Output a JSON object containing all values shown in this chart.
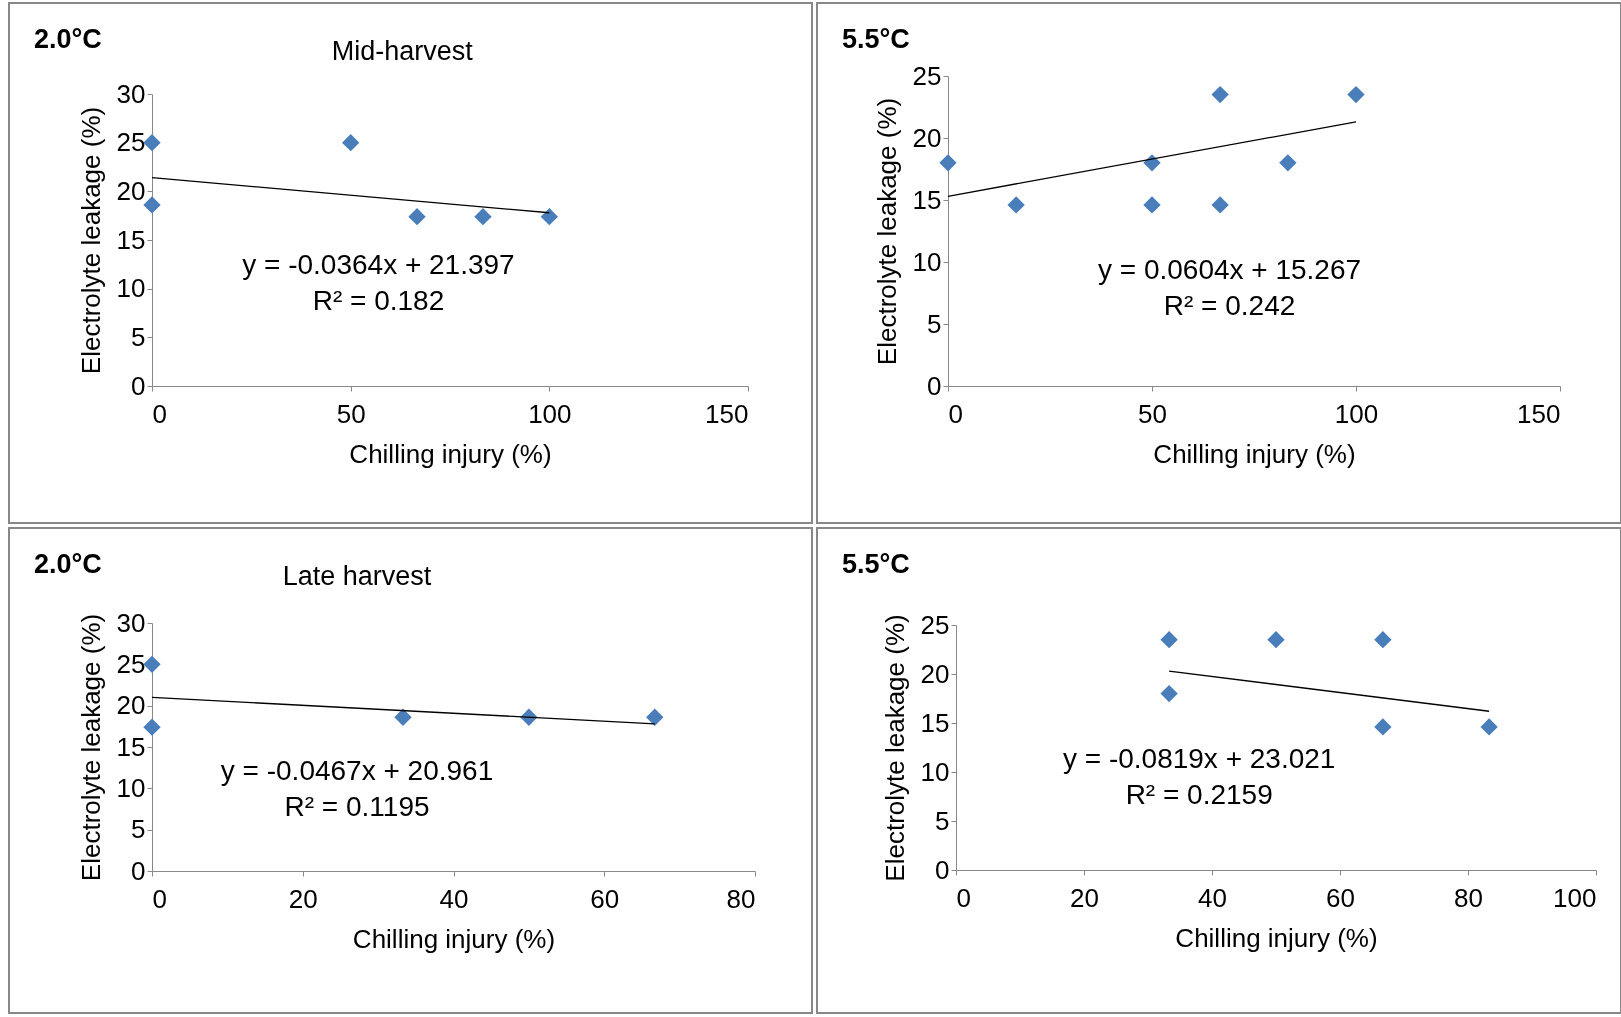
{
  "chart_data": [
    {
      "type": "scatter",
      "title": "2.0°C",
      "subtitle": "Mid-harvest",
      "xlabel": "Chilling injury (%)",
      "ylabel": "Electrolyte leakage (%)",
      "xlim": [
        0,
        150
      ],
      "xticks": [
        0,
        50,
        100,
        150
      ],
      "ylim": [
        0,
        30
      ],
      "yticks": [
        0,
        5,
        10,
        15,
        20,
        25,
        30
      ],
      "grid": false,
      "series": [
        {
          "marker": "diamond",
          "color": "#4a7ebb",
          "x": [
            0,
            0,
            50,
            66.7,
            83.3,
            100
          ],
          "values": [
            25,
            18.6,
            25,
            17.4,
            17.4,
            17.4
          ]
        },
        {
          "type": "line",
          "marker": "none",
          "color": "#000000",
          "x": [
            0,
            100
          ],
          "values": [
            21.4,
            17.8
          ]
        }
      ],
      "annotations": [
        "y = -0.0364x + 21.397",
        "R² = 0.182"
      ]
    },
    {
      "type": "scatter",
      "title": "5.5°C",
      "xlabel": "Chilling injury (%)",
      "ylabel": "Electrolyte leakage (%)",
      "xlim": [
        0,
        150
      ],
      "xticks": [
        0,
        50,
        100,
        150
      ],
      "ylim": [
        0,
        25
      ],
      "yticks": [
        0,
        5,
        10,
        15,
        20,
        25
      ],
      "grid": false,
      "series": [
        {
          "marker": "diamond",
          "color": "#4a7ebb",
          "x": [
            0,
            16.7,
            50,
            50,
            66.7,
            66.7,
            83.3,
            100
          ],
          "values": [
            18,
            14.6,
            18,
            14.6,
            23.5,
            14.6,
            18,
            23.5
          ]
        },
        {
          "type": "line",
          "marker": "none",
          "color": "#000000",
          "x": [
            0,
            100
          ],
          "values": [
            15.3,
            21.3
          ]
        }
      ],
      "annotations": [
        "y = 0.0604x + 15.267",
        "R² = 0.242"
      ]
    },
    {
      "type": "scatter",
      "title": "2.0°C",
      "subtitle": "Late harvest",
      "xlabel": "Chilling injury (%)",
      "ylabel": "Electrolyte leakage (%)",
      "xlim": [
        0,
        80
      ],
      "xticks": [
        0,
        20,
        40,
        60,
        80
      ],
      "ylim": [
        0,
        30
      ],
      "yticks": [
        0,
        5,
        10,
        15,
        20,
        25,
        30
      ],
      "grid": false,
      "series": [
        {
          "marker": "diamond",
          "color": "#4a7ebb",
          "x": [
            0,
            0,
            33.3,
            50,
            66.7
          ],
          "values": [
            25,
            17.4,
            18.6,
            18.6,
            18.6
          ]
        },
        {
          "type": "line",
          "marker": "none",
          "color": "#000000",
          "x": [
            0,
            66.7
          ],
          "values": [
            21.0,
            17.8
          ]
        }
      ],
      "annotations": [
        "y = -0.0467x + 20.961",
        "R² = 0.1195"
      ]
    },
    {
      "type": "scatter",
      "title": "5.5°C",
      "xlabel": "Chilling injury (%)",
      "ylabel": "Electrolyte leakage (%)",
      "xlim": [
        0,
        100
      ],
      "xticks": [
        0,
        20,
        40,
        60,
        80,
        100
      ],
      "ylim": [
        0,
        25
      ],
      "yticks": [
        0,
        5,
        10,
        15,
        20,
        25
      ],
      "grid": false,
      "series": [
        {
          "marker": "diamond",
          "color": "#4a7ebb",
          "x": [
            33.3,
            33.3,
            50,
            66.7,
            66.7,
            83.3
          ],
          "values": [
            23.5,
            18,
            23.5,
            23.5,
            14.6,
            14.6
          ]
        },
        {
          "type": "line",
          "marker": "none",
          "color": "#000000",
          "x": [
            33.3,
            83.3
          ],
          "values": [
            20.3,
            16.2
          ]
        }
      ],
      "annotations": [
        "y = -0.0819x + 23.021",
        "R² = 0.2159"
      ]
    }
  ]
}
